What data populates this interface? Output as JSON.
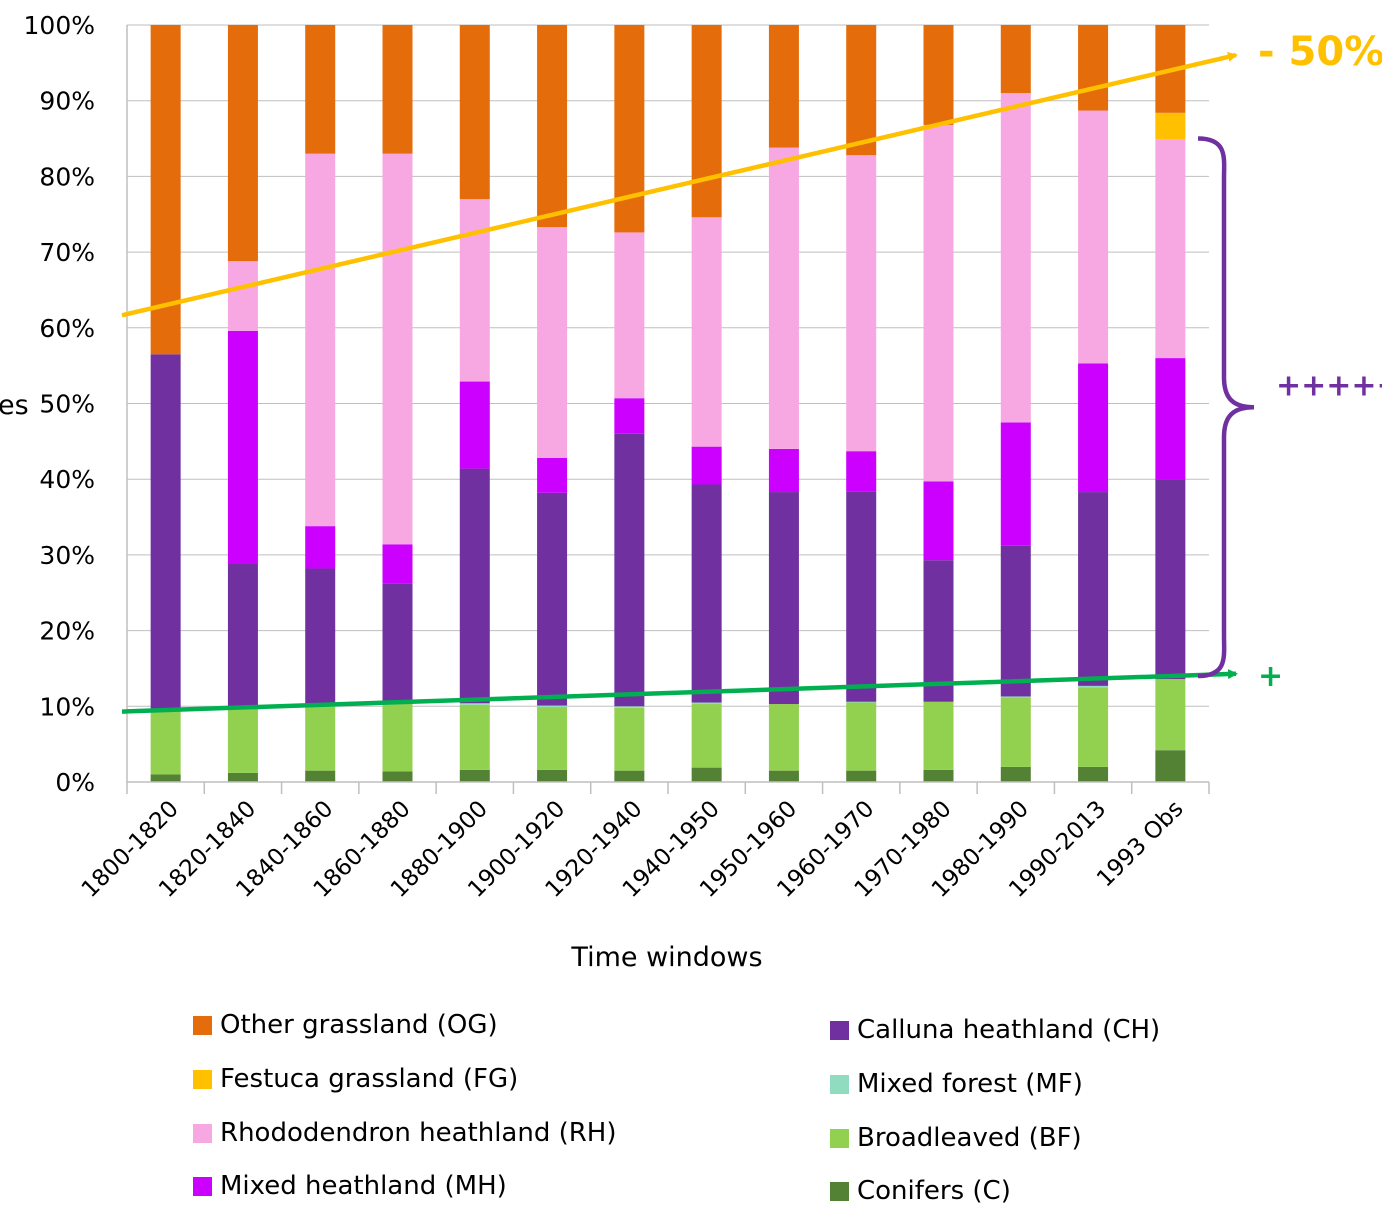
{
  "chart_data": {
    "type": "bar",
    "stacked": true,
    "percent": true,
    "xlabel": "Time windows",
    "ylabel": "es",
    "ylim": [
      0,
      100
    ],
    "yticks": [
      "0%",
      "10%",
      "20%",
      "30%",
      "40%",
      "50%",
      "60%",
      "70%",
      "80%",
      "90%",
      "100%"
    ],
    "categories": [
      "1800-1820",
      "1820-1840",
      "1840-1860",
      "1860-1880",
      "1880-1900",
      "1900-1920",
      "1920-1940",
      "1940-1950",
      "1950-1960",
      "1960-1970",
      "1970-1980",
      "1980-1990",
      "1990-2013",
      "1993 Obs"
    ],
    "series": [
      {
        "name": "Conifers (C)",
        "color": "#548235",
        "values": [
          1.0,
          1.2,
          1.5,
          1.4,
          1.6,
          1.6,
          1.5,
          1.9,
          1.5,
          1.5,
          1.6,
          2.0,
          2.0,
          4.2
        ]
      },
      {
        "name": "Broadleaved (BF)",
        "color": "#92d050",
        "values": [
          8.6,
          8.5,
          8.8,
          8.9,
          8.6,
          8.3,
          8.3,
          8.4,
          8.8,
          9.0,
          9.0,
          9.2,
          10.5,
          9.4
        ]
      },
      {
        "name": "Mixed forest (MF)",
        "color": "#8fdcc0",
        "values": [
          0,
          0,
          0,
          0,
          0.2,
          0.2,
          0.2,
          0.2,
          0,
          0.1,
          0,
          0.1,
          0.2,
          0
        ]
      },
      {
        "name": "Calluna heathland (CH)",
        "color": "#7030a0",
        "values": [
          46.9,
          19.1,
          17.9,
          15.9,
          31.0,
          28.1,
          36.0,
          28.8,
          28.0,
          27.8,
          18.7,
          19.9,
          25.6,
          26.4
        ]
      },
      {
        "name": "Mixed heathland (MH)",
        "color": "#cc00ff",
        "values": [
          0,
          30.8,
          5.6,
          5.2,
          11.5,
          4.6,
          4.7,
          5.0,
          5.7,
          5.3,
          10.4,
          16.3,
          17.0,
          16.0
        ]
      },
      {
        "name": "Rhododendron heathland (RH)",
        "color": "#f7a8e3",
        "values": [
          0,
          9.2,
          49.2,
          51.6,
          24.1,
          30.5,
          21.9,
          30.3,
          39.8,
          39.1,
          47.1,
          43.5,
          33.4,
          28.9
        ]
      },
      {
        "name": "Festuca grassland (FG)",
        "color": "#ffc000",
        "values": [
          0,
          0,
          0,
          0,
          0,
          0,
          0,
          0,
          0,
          0,
          0,
          0,
          0,
          3.5
        ]
      },
      {
        "name": "Other grassland (OG)",
        "color": "#e46c0a",
        "values": [
          43.5,
          31.2,
          17.0,
          17.0,
          23.0,
          26.7,
          27.4,
          25.4,
          16.2,
          17.2,
          13.2,
          9.0,
          11.3,
          11.6
        ]
      }
    ],
    "annotations": [
      {
        "text": "- 50%",
        "color": "#ffc000",
        "from": {
          "x": "1800-1820",
          "y": 63
        },
        "to": {
          "x": "1993 Obs",
          "y": 94
        }
      },
      {
        "text": "+",
        "color": "#00b050",
        "from": {
          "x": "1800-1820",
          "y": 9.5
        },
        "to": {
          "x": "1993 Obs",
          "y": 14
        }
      },
      {
        "text": "+++++",
        "color": "#7030a0",
        "brace": [
          14,
          85
        ]
      }
    ],
    "legend": {
      "placement": "bottom",
      "columns": [
        [
          "Other grassland (OG)",
          "Festuca grassland (FG)",
          "Rhododendron heathland (RH)",
          "Mixed heathland (MH)"
        ],
        [
          "Calluna heathland (CH)",
          "Mixed forest (MF)",
          "Broadleaved (BF)",
          "Conifers (C)"
        ]
      ]
    },
    "grid": true
  }
}
